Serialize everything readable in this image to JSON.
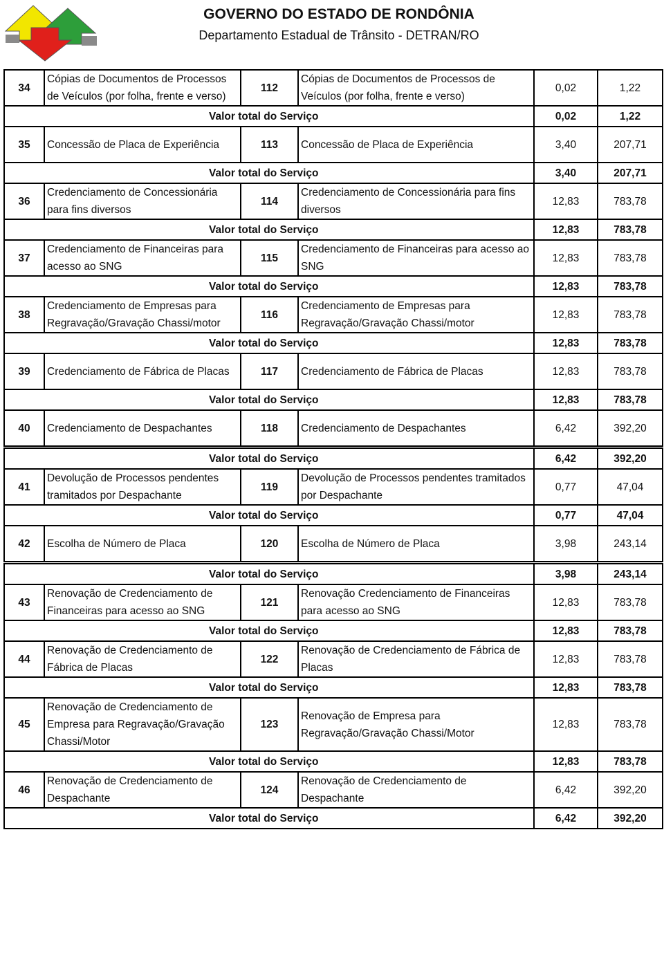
{
  "header": {
    "title": "GOVERNO DO ESTADO DE RONDÔNIA",
    "subtitle": "Departamento Estadual de Trânsito - DETRAN/RO"
  },
  "table": {
    "rows": [
      {
        "number": "34",
        "service": "Cópias de Documentos de Processos de Veículos (por folha, frente e verso)",
        "code": "112",
        "description": "Cópias de Documentos de Processos de Veículos (por folha, frente e verso)",
        "ufp": "0,02",
        "value": "1,22",
        "total_label": "Valor total do Serviço",
        "total_ufp": "0,02",
        "total_value": "1,22"
      },
      {
        "number": "35",
        "service": "Concessão de Placa de Experiência",
        "code": "113",
        "description": "Concessão de Placa de Experiência",
        "ufp": "3,40",
        "value": "207,71",
        "total_label": "Valor total do Serviço",
        "total_ufp": "3,40",
        "total_value": "207,71"
      },
      {
        "number": "36",
        "service": "Credenciamento de Concessionária para fins diversos",
        "code": "114",
        "description": "Credenciamento de Concessionária para fins diversos",
        "ufp": "12,83",
        "value": "783,78",
        "total_label": "Valor total do Serviço",
        "total_ufp": "12,83",
        "total_value": "783,78"
      },
      {
        "number": "37",
        "service": "Credenciamento de Financeiras para acesso ao SNG",
        "code": "115",
        "description": "Credenciamento de Financeiras para acesso ao SNG",
        "ufp": "12,83",
        "value": "783,78",
        "total_label": "Valor total do Serviço",
        "total_ufp": "12,83",
        "total_value": "783,78"
      },
      {
        "number": "38",
        "service": "Credenciamento de Empresas para Regravação/Gravação Chassi/motor",
        "code": "116",
        "description": "Credenciamento de Empresas para Regravação/Gravação  Chassi/motor",
        "ufp": "12,83",
        "value": "783,78",
        "total_label": "Valor total do Serviço",
        "total_ufp": "12,83",
        "total_value": "783,78"
      },
      {
        "number": "39",
        "service": "Credenciamento de Fábrica de Placas",
        "code": "117",
        "description": "Credenciamento de Fábrica de Placas",
        "ufp": "12,83",
        "value": "783,78",
        "total_label": "Valor total do Serviço",
        "total_ufp": "12,83",
        "total_value": "783,78"
      },
      {
        "number": "40",
        "service": "Credenciamento de Despachantes",
        "code": "118",
        "description": "Credenciamento de Despachantes",
        "ufp": "6,42",
        "value": "392,20",
        "total_label": "Valor total do Serviço",
        "total_ufp": "6,42",
        "total_value": "392,20"
      },
      {
        "number": "41",
        "service": "Devolução de Processos pendentes tramitados por Despachante",
        "code": "119",
        "description": "Devolução de Processos pendentes tramitados por Despachante",
        "ufp": "0,77",
        "value": "47,04",
        "total_label": "Valor total do Serviço",
        "total_ufp": "0,77",
        "total_value": "47,04"
      },
      {
        "number": "42",
        "service": "Escolha de Número de Placa",
        "code": "120",
        "description": "Escolha de Número de Placa",
        "ufp": "3,98",
        "value": "243,14",
        "total_label": "Valor total do Serviço",
        "total_ufp": "3,98",
        "total_value": "243,14"
      },
      {
        "number": "43",
        "service": "Renovação de Credenciamento de Financeiras para acesso ao SNG",
        "code": "121",
        "description": "Renovação Credenciamento de Financeiras para acesso ao SNG",
        "ufp": "12,83",
        "value": "783,78",
        "total_label": "Valor total do Serviço",
        "total_ufp": "12,83",
        "total_value": "783,78"
      },
      {
        "number": "44",
        "service": "Renovação de Credenciamento de Fábrica de Placas",
        "code": "122",
        "description": "Renovação de Credenciamento de Fábrica de Placas",
        "ufp": "12,83",
        "value": "783,78",
        "total_label": "Valor total do Serviço",
        "total_ufp": "12,83",
        "total_value": "783,78"
      },
      {
        "number": "45",
        "service": "Renovação de Credenciamento de Empresa para Regravação/Gravação Chassi/Motor",
        "code": "123",
        "description": "Renovação de Empresa para Regravação/Gravação Chassi/Motor",
        "ufp": "12,83",
        "value": "783,78",
        "total_label": "Valor total do Serviço",
        "total_ufp": "12,83",
        "total_value": "783,78"
      },
      {
        "number": "46",
        "service": "Renovação de Credenciamento de Despachante",
        "code": "124",
        "description": "Renovação de Credenciamento de Despachante",
        "ufp": "6,42",
        "value": "392,20",
        "total_label": "Valor total do Serviço",
        "total_ufp": "6,42",
        "total_value": "392,20"
      }
    ]
  }
}
